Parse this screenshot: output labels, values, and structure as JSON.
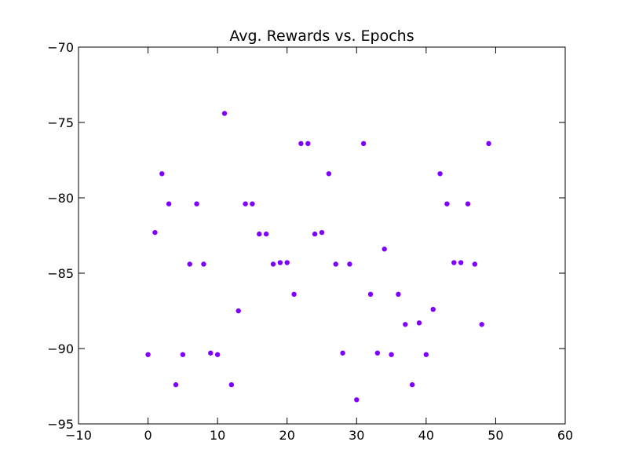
{
  "chart_data": {
    "type": "scatter",
    "title": "Avg. Rewards vs. Epochs",
    "xlabel": "",
    "ylabel": "",
    "xlim": [
      -10,
      60
    ],
    "ylim": [
      -95,
      -70
    ],
    "xticks": [
      -10,
      0,
      10,
      20,
      30,
      40,
      50,
      60
    ],
    "yticks": [
      -95,
      -90,
      -85,
      -80,
      -75,
      -70
    ],
    "xtick_labels": [
      "−10",
      "0",
      "10",
      "20",
      "30",
      "40",
      "50",
      "60"
    ],
    "ytick_labels": [
      "−95",
      "−90",
      "−85",
      "−80",
      "−75",
      "−70"
    ],
    "grid": false,
    "legend": "none",
    "marker_color": "#7f00ff",
    "series": [
      {
        "x": [
          0,
          1,
          2,
          3,
          4,
          5,
          6,
          7,
          8,
          9,
          10,
          11,
          12,
          13,
          14,
          15,
          16,
          17,
          18,
          19,
          20,
          21,
          22,
          23,
          24,
          25,
          26,
          27,
          28,
          29,
          30,
          31,
          32,
          33,
          34,
          35,
          36,
          37,
          38,
          39,
          40,
          41,
          42,
          43,
          44,
          45,
          46,
          47,
          48,
          49
        ],
        "y": [
          -90.4,
          -82.3,
          -78.4,
          -80.4,
          -92.4,
          -90.4,
          -84.4,
          -80.4,
          -84.4,
          -90.3,
          -90.4,
          -74.4,
          -92.4,
          -87.5,
          -80.4,
          -80.4,
          -82.4,
          -82.4,
          -84.4,
          -84.3,
          -84.3,
          -86.4,
          -76.4,
          -76.4,
          -82.4,
          -82.3,
          -78.4,
          -84.4,
          -90.3,
          -84.4,
          -93.4,
          -76.4,
          -86.4,
          -90.3,
          -83.4,
          -90.4,
          -86.4,
          -88.4,
          -92.4,
          -88.3,
          -90.4,
          -87.4,
          -78.4,
          -80.4,
          -84.3,
          -84.3,
          -80.4,
          -84.4,
          -88.4,
          -76.4
        ]
      }
    ]
  }
}
